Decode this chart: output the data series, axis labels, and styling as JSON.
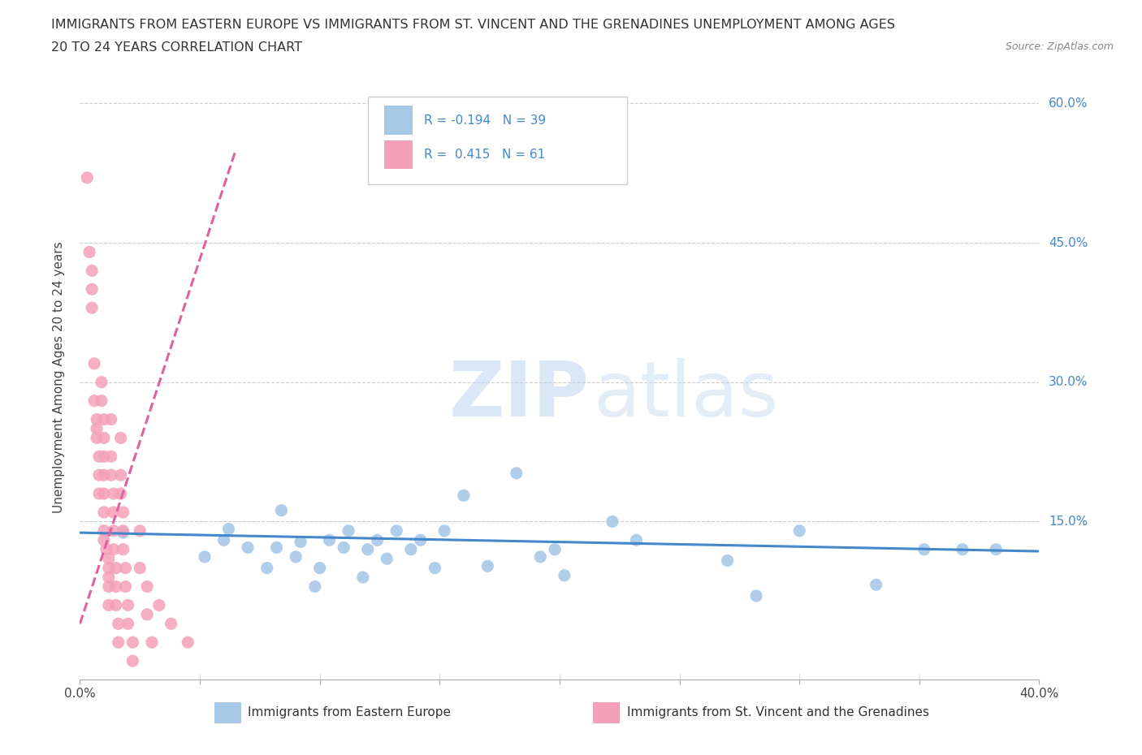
{
  "title_line1": "IMMIGRANTS FROM EASTERN EUROPE VS IMMIGRANTS FROM ST. VINCENT AND THE GRENADINES UNEMPLOYMENT AMONG AGES",
  "title_line2": "20 TO 24 YEARS CORRELATION CHART",
  "source": "Source: ZipAtlas.com",
  "ylabel": "Unemployment Among Ages 20 to 24 years",
  "legend_label1": "Immigrants from Eastern Europe",
  "legend_label2": "Immigrants from St. Vincent and the Grenadines",
  "color_blue": "#a8c8e8",
  "color_pink": "#f4a0b8",
  "color_blue_line": "#4488cc",
  "color_pink_line": "#e060a0",
  "color_text_blue": "#4488cc",
  "watermark_zip": "ZIP",
  "watermark_atlas": "atlas",
  "xlim": [
    0.0,
    0.4
  ],
  "ylim": [
    -0.02,
    0.63
  ],
  "x_ticks": [
    0.0,
    0.05,
    0.1,
    0.15,
    0.2,
    0.25,
    0.3,
    0.35,
    0.4
  ],
  "y_ticks": [
    0.0,
    0.15,
    0.3,
    0.45,
    0.6
  ],
  "blue_x": [
    0.018,
    0.052,
    0.06,
    0.062,
    0.07,
    0.078,
    0.082,
    0.084,
    0.09,
    0.092,
    0.098,
    0.1,
    0.104,
    0.11,
    0.112,
    0.118,
    0.12,
    0.124,
    0.128,
    0.132,
    0.138,
    0.142,
    0.148,
    0.152,
    0.16,
    0.17,
    0.182,
    0.192,
    0.198,
    0.202,
    0.222,
    0.232,
    0.27,
    0.282,
    0.3,
    0.332,
    0.352,
    0.368,
    0.382
  ],
  "blue_y": [
    0.138,
    0.112,
    0.13,
    0.142,
    0.122,
    0.1,
    0.122,
    0.162,
    0.112,
    0.128,
    0.08,
    0.1,
    0.13,
    0.122,
    0.14,
    0.09,
    0.12,
    0.13,
    0.11,
    0.14,
    0.12,
    0.13,
    0.1,
    0.14,
    0.178,
    0.102,
    0.202,
    0.112,
    0.12,
    0.092,
    0.15,
    0.13,
    0.108,
    0.07,
    0.14,
    0.082,
    0.12,
    0.12,
    0.12
  ],
  "pink_x": [
    0.003,
    0.004,
    0.005,
    0.005,
    0.005,
    0.006,
    0.006,
    0.007,
    0.007,
    0.007,
    0.008,
    0.008,
    0.008,
    0.009,
    0.009,
    0.01,
    0.01,
    0.01,
    0.01,
    0.01,
    0.01,
    0.01,
    0.01,
    0.011,
    0.012,
    0.012,
    0.012,
    0.012,
    0.012,
    0.013,
    0.013,
    0.013,
    0.014,
    0.014,
    0.014,
    0.014,
    0.015,
    0.015,
    0.015,
    0.016,
    0.016,
    0.017,
    0.017,
    0.017,
    0.018,
    0.018,
    0.018,
    0.019,
    0.019,
    0.02,
    0.02,
    0.022,
    0.022,
    0.025,
    0.025,
    0.028,
    0.028,
    0.03,
    0.033,
    0.038,
    0.045
  ],
  "pink_y": [
    0.52,
    0.44,
    0.42,
    0.4,
    0.38,
    0.32,
    0.28,
    0.26,
    0.25,
    0.24,
    0.22,
    0.2,
    0.18,
    0.3,
    0.28,
    0.26,
    0.24,
    0.22,
    0.2,
    0.18,
    0.16,
    0.14,
    0.13,
    0.12,
    0.11,
    0.1,
    0.09,
    0.08,
    0.06,
    0.26,
    0.22,
    0.2,
    0.18,
    0.16,
    0.14,
    0.12,
    0.1,
    0.08,
    0.06,
    0.04,
    0.02,
    0.24,
    0.2,
    0.18,
    0.16,
    0.14,
    0.12,
    0.1,
    0.08,
    0.06,
    0.04,
    0.02,
    0.0,
    0.14,
    0.1,
    0.08,
    0.05,
    0.02,
    0.06,
    0.04,
    0.02
  ],
  "blue_trend_x": [
    0.0,
    0.4
  ],
  "blue_trend_y": [
    0.138,
    0.118
  ],
  "pink_trend_x": [
    0.0,
    0.065
  ],
  "pink_trend_y": [
    0.04,
    0.55
  ],
  "grid_color": "#cccccc",
  "background_color": "#ffffff"
}
